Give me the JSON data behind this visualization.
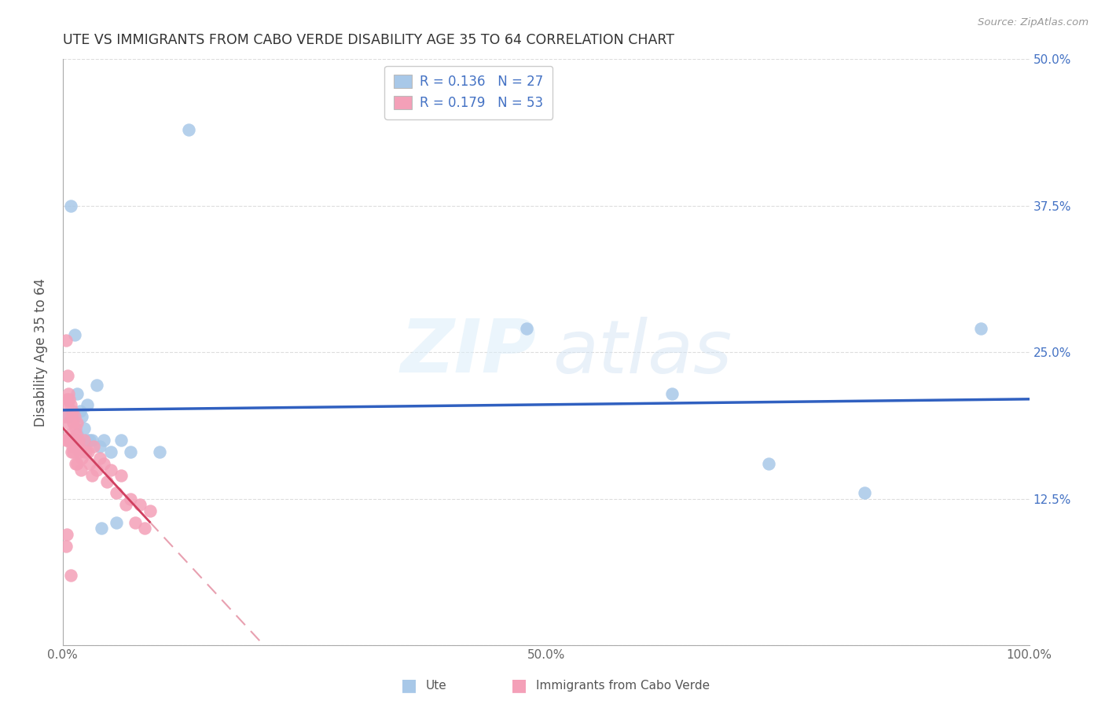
{
  "title": "UTE VS IMMIGRANTS FROM CABO VERDE DISABILITY AGE 35 TO 64 CORRELATION CHART",
  "source": "Source: ZipAtlas.com",
  "ylabel": "Disability Age 35 to 64",
  "xlim": [
    0.0,
    1.0
  ],
  "ylim": [
    0.0,
    0.5
  ],
  "xticks": [
    0.0,
    0.1,
    0.2,
    0.3,
    0.4,
    0.5,
    0.6,
    0.7,
    0.8,
    0.9,
    1.0
  ],
  "xticklabels": [
    "0.0%",
    "",
    "",
    "",
    "",
    "50.0%",
    "",
    "",
    "",
    "",
    "100.0%"
  ],
  "yticks": [
    0.0,
    0.125,
    0.25,
    0.375,
    0.5
  ],
  "yticklabels_right": [
    "",
    "12.5%",
    "25.0%",
    "37.5%",
    "50.0%"
  ],
  "R_ute": 0.136,
  "N_ute": 27,
  "R_cabo": 0.179,
  "N_cabo": 53,
  "ute_color": "#a8c8e8",
  "cabo_color": "#f4a0b8",
  "ute_line_color": "#3060C0",
  "cabo_solid_color": "#d04060",
  "cabo_dash_color": "#e8a0b0",
  "ute_x": [
    0.005,
    0.008,
    0.012,
    0.015,
    0.018,
    0.02,
    0.022,
    0.025,
    0.028,
    0.03,
    0.035,
    0.038,
    0.042,
    0.05,
    0.06,
    0.07,
    0.1,
    0.13,
    0.48,
    0.63,
    0.73,
    0.83,
    0.95,
    0.015,
    0.025,
    0.04,
    0.055
  ],
  "ute_y": [
    0.195,
    0.375,
    0.265,
    0.215,
    0.2,
    0.195,
    0.185,
    0.205,
    0.175,
    0.175,
    0.222,
    0.17,
    0.175,
    0.165,
    0.175,
    0.165,
    0.165,
    0.44,
    0.27,
    0.215,
    0.155,
    0.13,
    0.27,
    0.18,
    0.175,
    0.1,
    0.105
  ],
  "cabo_x": [
    0.002,
    0.003,
    0.003,
    0.004,
    0.005,
    0.005,
    0.005,
    0.006,
    0.006,
    0.007,
    0.007,
    0.008,
    0.008,
    0.009,
    0.009,
    0.01,
    0.01,
    0.011,
    0.011,
    0.012,
    0.012,
    0.013,
    0.013,
    0.014,
    0.015,
    0.015,
    0.016,
    0.017,
    0.018,
    0.019,
    0.02,
    0.022,
    0.024,
    0.026,
    0.028,
    0.03,
    0.032,
    0.035,
    0.038,
    0.042,
    0.046,
    0.05,
    0.055,
    0.06,
    0.065,
    0.07,
    0.075,
    0.08,
    0.085,
    0.09,
    0.003,
    0.004,
    0.008
  ],
  "cabo_y": [
    0.195,
    0.26,
    0.175,
    0.21,
    0.23,
    0.205,
    0.175,
    0.215,
    0.19,
    0.21,
    0.18,
    0.205,
    0.175,
    0.195,
    0.165,
    0.2,
    0.17,
    0.19,
    0.165,
    0.195,
    0.175,
    0.185,
    0.155,
    0.18,
    0.19,
    0.155,
    0.175,
    0.165,
    0.168,
    0.15,
    0.16,
    0.175,
    0.165,
    0.165,
    0.155,
    0.145,
    0.17,
    0.15,
    0.16,
    0.155,
    0.14,
    0.15,
    0.13,
    0.145,
    0.12,
    0.125,
    0.105,
    0.12,
    0.1,
    0.115,
    0.085,
    0.095,
    0.06
  ]
}
